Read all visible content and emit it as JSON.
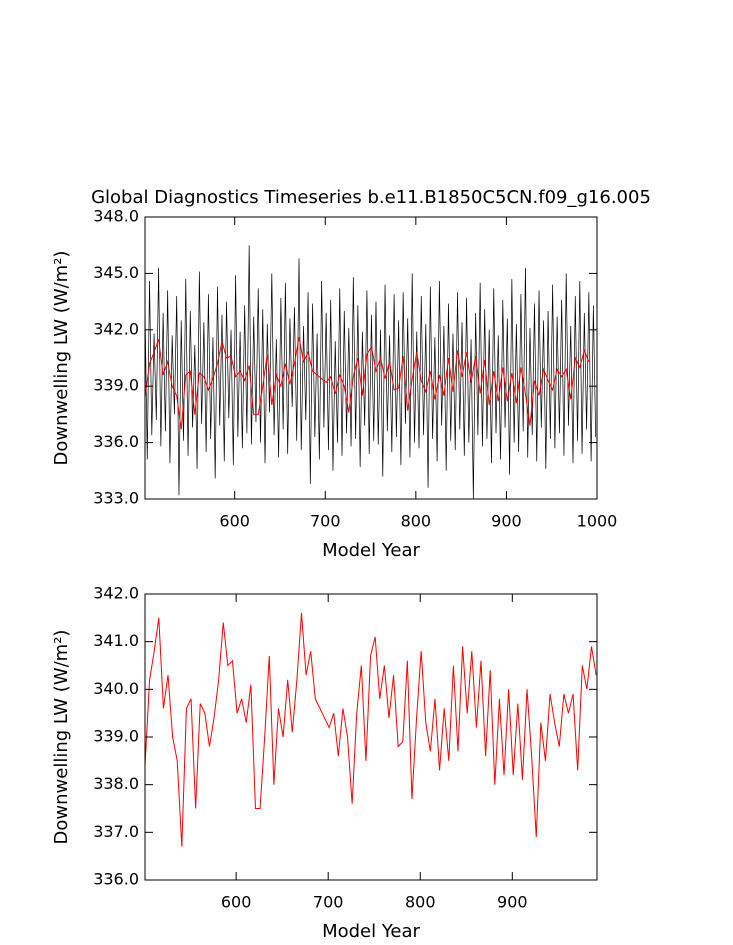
{
  "chart_data": [
    {
      "type": "line",
      "title": "Global Diagnostics Timeseries b.e11.B1850C5CN.f09_g16.005",
      "xlabel": "Model Year",
      "ylabel": "Downwelling LW (W/m²)",
      "xlim": [
        501,
        1000
      ],
      "xticks": [
        600,
        700,
        800,
        900,
        1000
      ],
      "ylim": [
        333,
        348
      ],
      "yticks": [
        {
          "value": 333,
          "label": "333.0"
        },
        {
          "value": 336,
          "label": "336.0"
        },
        {
          "value": 339,
          "label": "339.0"
        },
        {
          "value": 342,
          "label": "342.0"
        },
        {
          "value": 345,
          "label": "345.0"
        },
        {
          "value": 348,
          "label": "348.0"
        }
      ],
      "series": [
        {
          "color": "#000000",
          "x": [
            501,
            503.5,
            506,
            508.5,
            511,
            513.5,
            516,
            518.5,
            521,
            523.5,
            526,
            528.5,
            531,
            533.5,
            536,
            538.5,
            541,
            543.5,
            546,
            548.5,
            551,
            553.5,
            556,
            558.5,
            561,
            563.5,
            566,
            568.5,
            571,
            573.5,
            576,
            578.5,
            581,
            583.5,
            586,
            588.5,
            591,
            593.5,
            596,
            598.5,
            601,
            603.5,
            606,
            608.5,
            611,
            613.5,
            616,
            618.5,
            621,
            623.5,
            626,
            628.5,
            631,
            633.5,
            636,
            638.5,
            641,
            643.5,
            646,
            648.5,
            651,
            653.5,
            656,
            658.5,
            661,
            663.5,
            666,
            668.5,
            671,
            673.5,
            676,
            678.5,
            681,
            683.5,
            686,
            688.5,
            691,
            693.5,
            696,
            698.5,
            701,
            703.5,
            706,
            708.5,
            711,
            713.5,
            716,
            718.5,
            721,
            723.5,
            726,
            728.5,
            731,
            733.5,
            736,
            738.5,
            741,
            743.5,
            746,
            748.5,
            751,
            753.5,
            756,
            758.5,
            761,
            763.5,
            766,
            768.5,
            771,
            773.5,
            776,
            778.5,
            781,
            783.5,
            786,
            788.5,
            791,
            793.5,
            796,
            798.5,
            801,
            803.5,
            806,
            808.5,
            811,
            813.5,
            816,
            818.5,
            821,
            823.5,
            826,
            828.5,
            831,
            833.5,
            836,
            838.5,
            841,
            843.5,
            846,
            848.5,
            851,
            853.5,
            856,
            858.5,
            861,
            863.5,
            866,
            868.5,
            871,
            873.5,
            876,
            878.5,
            881,
            883.5,
            886,
            888.5,
            891,
            893.5,
            896,
            898.5,
            901,
            903.5,
            906,
            908.5,
            911,
            913.5,
            916,
            918.5,
            921,
            923.5,
            926,
            928.5,
            931,
            933.5,
            936,
            938.5,
            941,
            943.5,
            946,
            948.5,
            951,
            953.5,
            956,
            958.5,
            961,
            963.5,
            966,
            968.5,
            971,
            973.5,
            976,
            978.5,
            981,
            983.5,
            986,
            988.5,
            991,
            993.5,
            996,
            998.5
          ],
          "values": [
            343.2,
            335.1,
            344.6,
            336.4,
            341.8,
            337.2,
            345.3,
            335.8,
            342.9,
            336.6,
            344.1,
            334.9,
            341.7,
            337.5,
            343.8,
            333.2,
            342.5,
            336.1,
            344.7,
            335.3,
            343.0,
            336.8,
            341.2,
            334.6,
            345.1,
            337.0,
            342.4,
            335.5,
            343.9,
            336.2,
            341.6,
            334.1,
            344.3,
            336.9,
            342.8,
            335.0,
            343.5,
            337.3,
            342.0,
            334.8,
            344.9,
            336.3,
            341.9,
            335.7,
            343.3,
            336.5,
            346.5,
            335.9,
            342.7,
            337.1,
            344.2,
            336.0,
            343.1,
            334.9,
            342.3,
            337.6,
            345.0,
            336.4,
            341.5,
            335.2,
            343.7,
            336.7,
            344.5,
            335.4,
            342.6,
            337.9,
            343.2,
            336.1,
            345.8,
            335.6,
            342.2,
            337.2,
            344.0,
            333.8,
            343.4,
            336.3,
            341.8,
            335.1,
            344.6,
            336.8,
            342.9,
            335.6,
            343.6,
            334.5,
            341.4,
            336.0,
            344.2,
            335.3,
            343.0,
            336.5,
            342.1,
            335.8,
            344.8,
            336.2,
            343.3,
            334.7,
            341.9,
            336.9,
            344.1,
            335.4,
            342.8,
            336.1,
            343.5,
            335.9,
            342.0,
            334.2,
            344.4,
            336.6,
            341.7,
            335.5,
            343.9,
            336.3,
            342.5,
            334.8,
            344.0,
            337.0,
            342.6,
            335.2,
            345.0,
            336.0,
            341.9,
            335.7,
            343.8,
            336.4,
            342.3,
            333.6,
            344.3,
            336.2,
            341.6,
            335.0,
            344.6,
            336.9,
            342.2,
            334.5,
            343.4,
            336.1,
            341.8,
            335.6,
            344.0,
            336.7,
            342.4,
            335.3,
            343.7,
            336.0,
            341.5,
            333.0,
            342.9,
            336.4,
            344.5,
            335.8,
            343.1,
            336.2,
            342.0,
            334.9,
            344.2,
            336.5,
            341.7,
            335.1,
            343.6,
            336.8,
            342.6,
            334.3,
            344.7,
            336.0,
            342.3,
            335.5,
            343.9,
            336.6,
            345.3,
            335.2,
            342.1,
            336.4,
            343.4,
            335.0,
            344.1,
            336.8,
            342.5,
            334.6,
            343.0,
            336.2,
            344.4,
            335.7,
            342.7,
            336.5,
            343.6,
            335.3,
            345.0,
            336.9,
            342.2,
            334.9,
            343.8,
            336.1,
            344.6,
            335.4,
            342.9,
            336.7,
            344.0,
            335.0,
            343.3,
            336.3
          ]
        },
        {
          "color": "#ff0000",
          "x": [
            501,
            506,
            511,
            516,
            521,
            526,
            531,
            536,
            541,
            546,
            551,
            556,
            561,
            566,
            571,
            576,
            581,
            586,
            591,
            596,
            601,
            606,
            611,
            616,
            621,
            626,
            631,
            636,
            641,
            646,
            651,
            656,
            661,
            666,
            671,
            676,
            681,
            686,
            691,
            696,
            701,
            706,
            711,
            716,
            721,
            726,
            731,
            736,
            741,
            746,
            751,
            756,
            761,
            766,
            771,
            776,
            781,
            786,
            791,
            796,
            801,
            806,
            811,
            816,
            821,
            826,
            831,
            836,
            841,
            846,
            851,
            856,
            861,
            866,
            871,
            876,
            881,
            886,
            891,
            896,
            901,
            906,
            911,
            916,
            921,
            926,
            931,
            936,
            941,
            946,
            951,
            956,
            961,
            966,
            971,
            976,
            981,
            986,
            991
          ],
          "values": [
            338.4,
            340.2,
            340.8,
            341.5,
            339.6,
            340.3,
            339.0,
            338.5,
            336.7,
            339.6,
            339.8,
            337.5,
            339.7,
            339.5,
            338.8,
            339.4,
            340.2,
            341.4,
            340.5,
            340.6,
            339.5,
            339.8,
            339.3,
            340.1,
            337.5,
            337.5,
            339.0,
            340.7,
            338.0,
            339.6,
            339.0,
            340.2,
            339.1,
            340.2,
            341.6,
            340.3,
            340.8,
            339.8,
            339.6,
            339.4,
            339.2,
            339.5,
            338.6,
            339.6,
            339.0,
            337.6,
            339.5,
            340.5,
            338.5,
            340.7,
            341.1,
            339.8,
            340.5,
            339.4,
            340.3,
            338.8,
            338.9,
            340.6,
            337.7,
            339.4,
            340.8,
            339.3,
            338.7,
            339.8,
            338.3,
            339.6,
            338.5,
            340.5,
            338.7,
            340.9,
            339.5,
            340.8,
            339.2,
            340.6,
            338.6,
            340.4,
            338.0,
            339.8,
            338.2,
            340.0,
            338.2,
            339.7,
            338.1,
            340.0,
            338.6,
            336.9,
            339.3,
            338.5,
            339.9,
            339.3,
            338.8,
            339.9,
            339.5,
            339.9,
            338.3,
            340.5,
            340.0,
            340.9,
            340.3
          ]
        }
      ]
    },
    {
      "type": "line",
      "xlabel": "Model Year",
      "ylabel": "Downwelling LW (W/m²)",
      "xlim": [
        501,
        992
      ],
      "xticks": [
        600,
        700,
        800,
        900
      ],
      "ylim": [
        336,
        342
      ],
      "yticks": [
        {
          "value": 336,
          "label": "336.0"
        },
        {
          "value": 337,
          "label": "337.0"
        },
        {
          "value": 338,
          "label": "338.0"
        },
        {
          "value": 339,
          "label": "339.0"
        },
        {
          "value": 340,
          "label": "340.0"
        },
        {
          "value": 341,
          "label": "341.0"
        },
        {
          "value": 342,
          "label": "342.0"
        }
      ],
      "series": [
        {
          "color": "#ff0000",
          "x": [
            501,
            506,
            511,
            516,
            521,
            526,
            531,
            536,
            541,
            546,
            551,
            556,
            561,
            566,
            571,
            576,
            581,
            586,
            591,
            596,
            601,
            606,
            611,
            616,
            621,
            626,
            631,
            636,
            641,
            646,
            651,
            656,
            661,
            666,
            671,
            676,
            681,
            686,
            691,
            696,
            701,
            706,
            711,
            716,
            721,
            726,
            731,
            736,
            741,
            746,
            751,
            756,
            761,
            766,
            771,
            776,
            781,
            786,
            791,
            796,
            801,
            806,
            811,
            816,
            821,
            826,
            831,
            836,
            841,
            846,
            851,
            856,
            861,
            866,
            871,
            876,
            881,
            886,
            891,
            896,
            901,
            906,
            911,
            916,
            921,
            926,
            931,
            936,
            941,
            946,
            951,
            956,
            961,
            966,
            971,
            976,
            981,
            986,
            991
          ],
          "values": [
            338.4,
            340.2,
            340.8,
            341.5,
            339.6,
            340.3,
            339.0,
            338.5,
            336.7,
            339.6,
            339.8,
            337.5,
            339.7,
            339.5,
            338.8,
            339.4,
            340.2,
            341.4,
            340.5,
            340.6,
            339.5,
            339.8,
            339.3,
            340.1,
            337.5,
            337.5,
            339.0,
            340.7,
            338.0,
            339.6,
            339.0,
            340.2,
            339.1,
            340.2,
            341.6,
            340.3,
            340.8,
            339.8,
            339.6,
            339.4,
            339.2,
            339.5,
            338.6,
            339.6,
            339.0,
            337.6,
            339.5,
            340.5,
            338.5,
            340.7,
            341.1,
            339.8,
            340.5,
            339.4,
            340.3,
            338.8,
            338.9,
            340.6,
            337.7,
            339.4,
            340.8,
            339.3,
            338.7,
            339.8,
            338.3,
            339.6,
            338.5,
            340.5,
            338.7,
            340.9,
            339.5,
            340.8,
            339.2,
            340.6,
            338.6,
            340.4,
            338.0,
            339.8,
            338.2,
            340.0,
            338.2,
            339.7,
            338.1,
            340.0,
            338.6,
            336.9,
            339.3,
            338.5,
            339.9,
            339.3,
            338.8,
            339.9,
            339.5,
            339.9,
            338.3,
            340.5,
            340.0,
            340.9,
            340.3
          ]
        }
      ]
    }
  ]
}
